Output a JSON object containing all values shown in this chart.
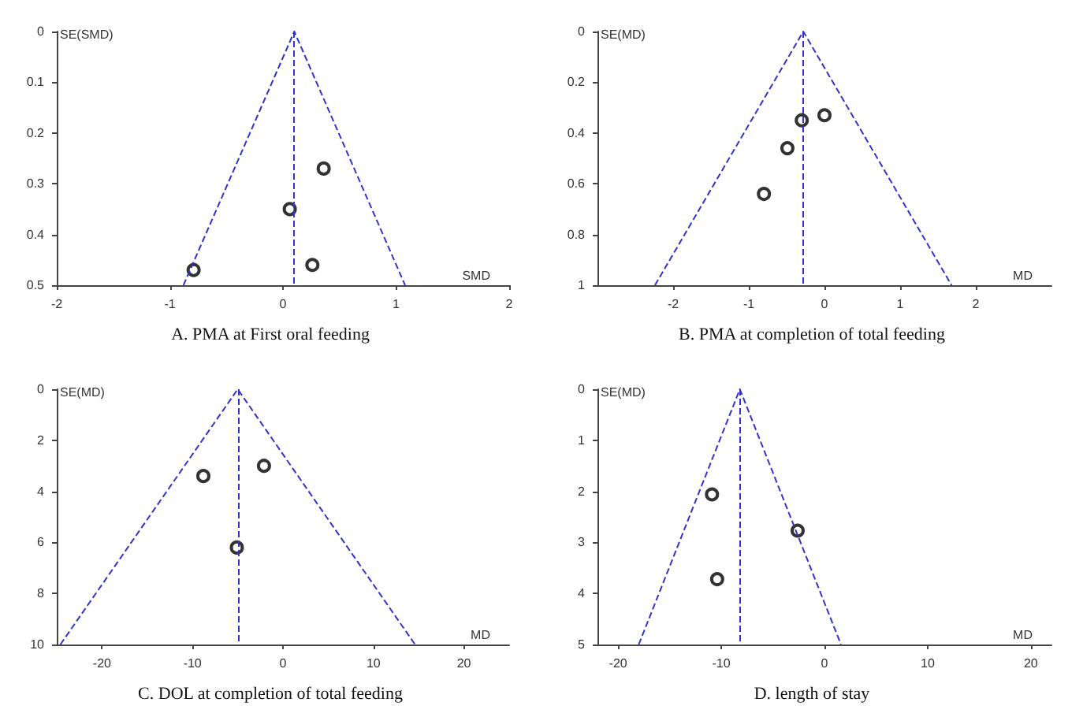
{
  "chart_data": [
    {
      "type": "scatter",
      "title": "A. PMA at First oral feeding",
      "xlabel": "SMD",
      "ylabel": "SE(SMD)",
      "xlim": [
        -2,
        2
      ],
      "xticks": [
        -2,
        -1,
        0,
        1,
        2
      ],
      "ylim": [
        0.5,
        0
      ],
      "yticks": [
        0,
        0.1,
        0.2,
        0.3,
        0.4,
        0.5
      ],
      "grid": false,
      "marker": "circle",
      "series": [
        {
          "color": "#000000",
          "x": [
            0.36,
            0.06,
            -0.79,
            0.26
          ],
          "values": [
            0.27,
            0.35,
            0.47,
            0.46
          ]
        },
        {
          "type": "line",
          "color": "#3333cc",
          "line_style": "dashed",
          "marker": "none",
          "x": [
            -0.88,
            0.1,
            1.08
          ],
          "values": [
            0.5,
            0,
            0.5
          ]
        }
      ],
      "ref_lines": [
        {
          "axis": "x",
          "value": 0.1,
          "color": "#3333cc",
          "line_style": "dashed"
        }
      ]
    },
    {
      "type": "scatter",
      "title": "B. PMA at completion of total feeding",
      "xlabel": "MD",
      "ylabel": "SE(MD)",
      "xlim": [
        -3,
        3
      ],
      "xticks": [
        -2,
        -1,
        0,
        1,
        2
      ],
      "ylim": [
        1,
        0
      ],
      "yticks": [
        0,
        0.2,
        0.4,
        0.6,
        0.8,
        1
      ],
      "grid": false,
      "marker": "circle",
      "series": [
        {
          "color": "#000000",
          "x": [
            -0.3,
            0.0,
            -0.49,
            -0.8
          ],
          "values": [
            0.35,
            0.33,
            0.46,
            0.64
          ]
        },
        {
          "type": "line",
          "color": "#3333cc",
          "line_style": "dashed",
          "marker": "none",
          "x": [
            -2.24,
            -0.28,
            1.68
          ],
          "values": [
            1,
            0,
            1
          ]
        }
      ],
      "ref_lines": [
        {
          "axis": "x",
          "value": -0.28,
          "color": "#3333cc",
          "line_style": "dashed"
        }
      ]
    },
    {
      "type": "scatter",
      "title": "C. DOL at completion of total feeding",
      "xlabel": "MD",
      "ylabel": "SE(MD)",
      "xlim": [
        -25,
        25
      ],
      "xticks": [
        -20,
        -10,
        0,
        10,
        20
      ],
      "ylim": [
        10,
        0
      ],
      "yticks": [
        0,
        2,
        4,
        6,
        8,
        10
      ],
      "grid": false,
      "marker": "circle",
      "series": [
        {
          "color": "#000000",
          "x": [
            -8.8,
            -2.1,
            -5.1
          ],
          "values": [
            3.4,
            3.0,
            6.2
          ]
        },
        {
          "type": "line",
          "color": "#3333cc",
          "line_style": "dashed",
          "marker": "none",
          "x": [
            -24.6,
            -5.0,
            14.6
          ],
          "values": [
            10,
            0,
            10
          ]
        }
      ],
      "ref_lines": [
        {
          "axis": "x",
          "value": -5.0,
          "color": "#3333cc",
          "line_style": "dashed"
        }
      ]
    },
    {
      "type": "scatter",
      "title": "D. length of stay",
      "xlabel": "MD",
      "ylabel": "SE(MD)",
      "xlim": [
        -22,
        22
      ],
      "xticks": [
        -20,
        -10,
        0,
        10,
        20
      ],
      "ylim": [
        5,
        0
      ],
      "yticks": [
        0,
        1,
        2,
        3,
        4,
        5
      ],
      "grid": false,
      "marker": "circle",
      "series": [
        {
          "color": "#000000",
          "x": [
            -10.9,
            -2.6,
            -10.4
          ],
          "values": [
            2.06,
            2.77,
            3.72
          ]
        },
        {
          "type": "line",
          "color": "#3333cc",
          "line_style": "dashed",
          "marker": "none",
          "x": [
            -18.0,
            -8.2,
            1.6
          ],
          "values": [
            5,
            0,
            5
          ]
        }
      ],
      "ref_lines": [
        {
          "axis": "x",
          "value": -8.2,
          "color": "#3333cc",
          "line_style": "dashed"
        }
      ]
    }
  ]
}
